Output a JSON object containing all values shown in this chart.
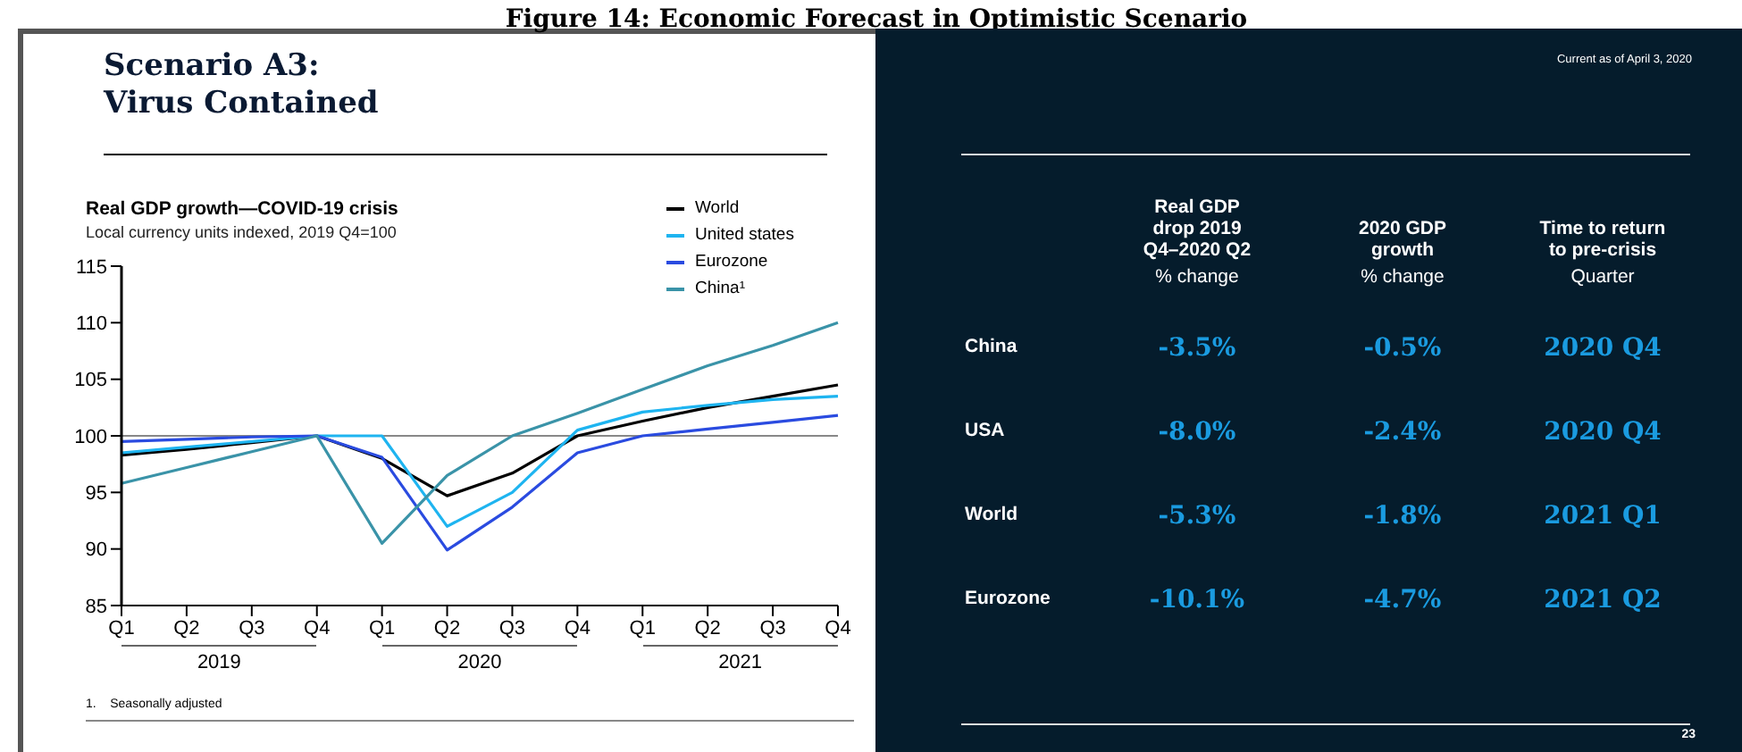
{
  "chart_data": [
    {
      "type": "line",
      "title": "Real GDP growth—COVID-19 crisis",
      "subtitle": "Local currency units indexed, 2019 Q4=100",
      "categories": [
        "Q1",
        "Q2",
        "Q3",
        "Q4",
        "Q1",
        "Q2",
        "Q3",
        "Q4",
        "Q1",
        "Q2",
        "Q3",
        "Q4"
      ],
      "series": [
        {
          "name": "World",
          "color": "#000000",
          "values": [
            98.3,
            98.8,
            99.4,
            100,
            98.0,
            94.7,
            96.7,
            100,
            101.3,
            102.5,
            103.5,
            104.5
          ]
        },
        {
          "name": "United states",
          "color": "#1eb4f0",
          "values": [
            98.5,
            99.0,
            99.5,
            100,
            100,
            92.0,
            95.0,
            100.5,
            102.1,
            102.7,
            103.2,
            103.5
          ]
        },
        {
          "name": "Eurozone",
          "color": "#2a4be0",
          "values": [
            99.5,
            99.7,
            99.9,
            100,
            98.1,
            89.9,
            93.7,
            98.5,
            100,
            100.6,
            101.2,
            101.8
          ]
        },
        {
          "name": "China¹",
          "color": "#3a93a8",
          "values": [
            95.8,
            97.2,
            98.6,
            100,
            90.5,
            96.5,
            100,
            102,
            104.1,
            106.2,
            108,
            110
          ]
        }
      ],
      "ylim": [
        85,
        115
      ],
      "yticks": [
        85,
        90,
        95,
        100,
        105,
        110,
        115
      ],
      "ref_lines": [
        {
          "axis": "y",
          "value": 100,
          "color": "#888888"
        }
      ],
      "legend": "top right",
      "annotations": [
        "Figure 14: Economic Forecast in Optimistic Scenario",
        "Scenario A3:\nVirus Contained",
        "2019",
        "2020",
        "2021",
        "1.    Seasonally adjusted"
      ]
    },
    {
      "type": "other",
      "annotations": [
        "Current as of April 3, 2020",
        "Real GDP\ndrop 2019\nQ4–2020 Q2",
        "2020 GDP\ngrowth",
        "Time to return\nto pre-crisis",
        "% change",
        "% change",
        "Quarter",
        "China",
        "-3.5%",
        "-0.5%",
        "2020 Q4",
        "USA",
        "-8.0%",
        "-2.4%",
        "2020 Q4",
        "World",
        "-5.3%",
        "-1.8%",
        "2021 Q1",
        "Eurozone",
        "-10.1%",
        "-4.7%",
        "2021 Q2",
        "23"
      ]
    }
  ]
}
